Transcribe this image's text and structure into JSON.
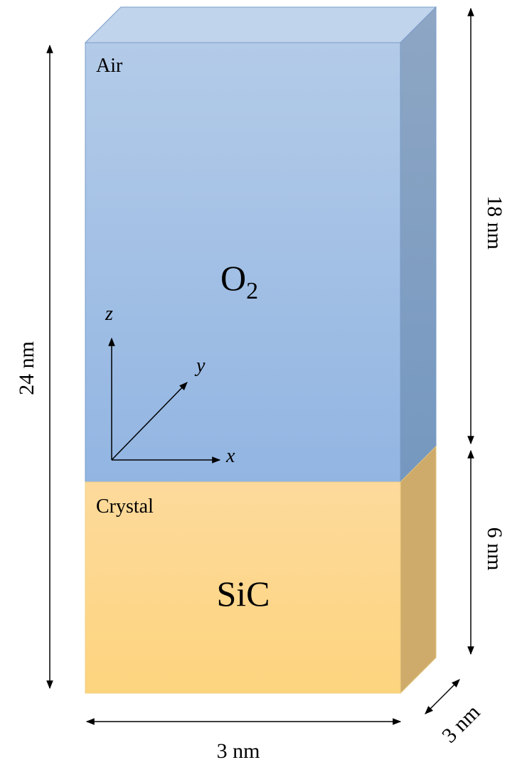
{
  "diagram": {
    "regions": [
      {
        "label": "Air",
        "material": "O",
        "subscript": "2"
      },
      {
        "label": "Crystal",
        "material": "SiC"
      }
    ],
    "axes": {
      "z": "z",
      "y": "y",
      "x": "x"
    },
    "dimensions": {
      "total_height": "24 nm",
      "air_height": "18 nm",
      "crystal_height": "6 nm",
      "width": "3 nm",
      "depth": "3 nm"
    }
  }
}
